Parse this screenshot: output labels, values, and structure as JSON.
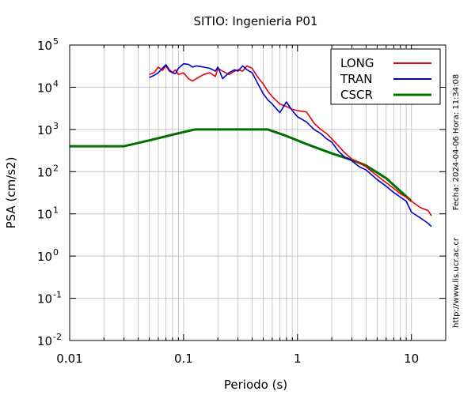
{
  "chart_data": {
    "type": "line",
    "title": "SITIO: Ingenieria P01",
    "xlabel": "Periodo (s)",
    "ylabel": "PSA (cm/s2)",
    "x_scale": "log",
    "y_scale": "log",
    "xlim": [
      0.01,
      20
    ],
    "ylim": [
      0.01,
      100000
    ],
    "x_ticks": [
      {
        "value": 0.01,
        "label": "0.01"
      },
      {
        "value": 0.1,
        "label": "0.1"
      },
      {
        "value": 1,
        "label": "1"
      },
      {
        "value": 10,
        "label": "10"
      }
    ],
    "y_ticks": [
      {
        "value": 0.01,
        "base": "10",
        "exp": "-2"
      },
      {
        "value": 0.1,
        "base": "10",
        "exp": "-1"
      },
      {
        "value": 1,
        "base": "10",
        "exp": "0"
      },
      {
        "value": 10,
        "base": "10",
        "exp": "1"
      },
      {
        "value": 100,
        "base": "10",
        "exp": "2"
      },
      {
        "value": 1000,
        "base": "10",
        "exp": "3"
      },
      {
        "value": 10000,
        "base": "10",
        "exp": "4"
      },
      {
        "value": 100000,
        "base": "10",
        "exp": "5"
      }
    ],
    "grid": true,
    "legend_position": "top-right",
    "series": [
      {
        "name": "LONG",
        "color": "#e8000b",
        "x": [
          0.05,
          0.055,
          0.06,
          0.065,
          0.07,
          0.075,
          0.08,
          0.085,
          0.09,
          0.1,
          0.11,
          0.12,
          0.13,
          0.15,
          0.17,
          0.19,
          0.2,
          0.22,
          0.25,
          0.28,
          0.3,
          0.33,
          0.36,
          0.4,
          0.45,
          0.5,
          0.55,
          0.6,
          0.7,
          0.8,
          0.9,
          1.0,
          1.2,
          1.4,
          1.6,
          1.8,
          2.0,
          2.3,
          2.6,
          3.0,
          3.5,
          4.0,
          5.0,
          6.0,
          7.0,
          8.0,
          9.0,
          10.0,
          12.0,
          14.0,
          15.0
        ],
        "y": [
          20000,
          22000,
          30000,
          25000,
          32000,
          24000,
          22000,
          26000,
          20000,
          22000,
          16000,
          14000,
          16000,
          20000,
          22000,
          18000,
          28000,
          24000,
          20000,
          24000,
          26000,
          24000,
          32000,
          28000,
          17000,
          12000,
          8000,
          6000,
          4000,
          3500,
          3000,
          2800,
          2600,
          1400,
          1000,
          800,
          600,
          400,
          280,
          200,
          160,
          130,
          80,
          55,
          40,
          30,
          25,
          20,
          14,
          12,
          9
        ]
      },
      {
        "name": "TRAN",
        "color": "#0000cc",
        "x": [
          0.05,
          0.055,
          0.06,
          0.065,
          0.07,
          0.075,
          0.08,
          0.085,
          0.09,
          0.1,
          0.11,
          0.12,
          0.13,
          0.15,
          0.17,
          0.19,
          0.2,
          0.22,
          0.25,
          0.28,
          0.3,
          0.33,
          0.36,
          0.4,
          0.45,
          0.5,
          0.55,
          0.6,
          0.7,
          0.8,
          0.9,
          1.0,
          1.2,
          1.4,
          1.6,
          1.8,
          2.0,
          2.3,
          2.6,
          3.0,
          3.5,
          4.0,
          5.0,
          6.0,
          7.0,
          8.0,
          9.0,
          10.0,
          12.0,
          14.0,
          15.0
        ],
        "y": [
          17000,
          19000,
          22000,
          28000,
          34000,
          26000,
          22000,
          21000,
          28000,
          36000,
          35000,
          30000,
          32000,
          30000,
          28000,
          24000,
          30000,
          16000,
          22000,
          26000,
          24000,
          32000,
          26000,
          22000,
          12000,
          7000,
          5000,
          4000,
          2500,
          4500,
          2800,
          2000,
          1500,
          1000,
          800,
          600,
          500,
          300,
          220,
          180,
          130,
          110,
          65,
          45,
          32,
          25,
          20,
          11,
          8,
          6,
          5
        ]
      },
      {
        "name": "CSCR",
        "color": "#007000",
        "x": [
          0.01,
          0.03,
          0.05,
          0.08,
          0.125,
          0.2,
          0.3,
          0.4,
          0.55,
          0.8,
          1.2,
          2.0,
          3.0,
          4.0,
          6.0,
          10.0
        ],
        "y": [
          400,
          400,
          550,
          750,
          1000,
          1000,
          1000,
          1000,
          1000,
          700,
          450,
          270,
          190,
          140,
          70,
          20
        ]
      }
    ],
    "side_text": {
      "date_time": "Fecha: 2024-04-06  Hora: 11:34:08",
      "url": "http://www.lis.ucr.ac.cr"
    }
  }
}
